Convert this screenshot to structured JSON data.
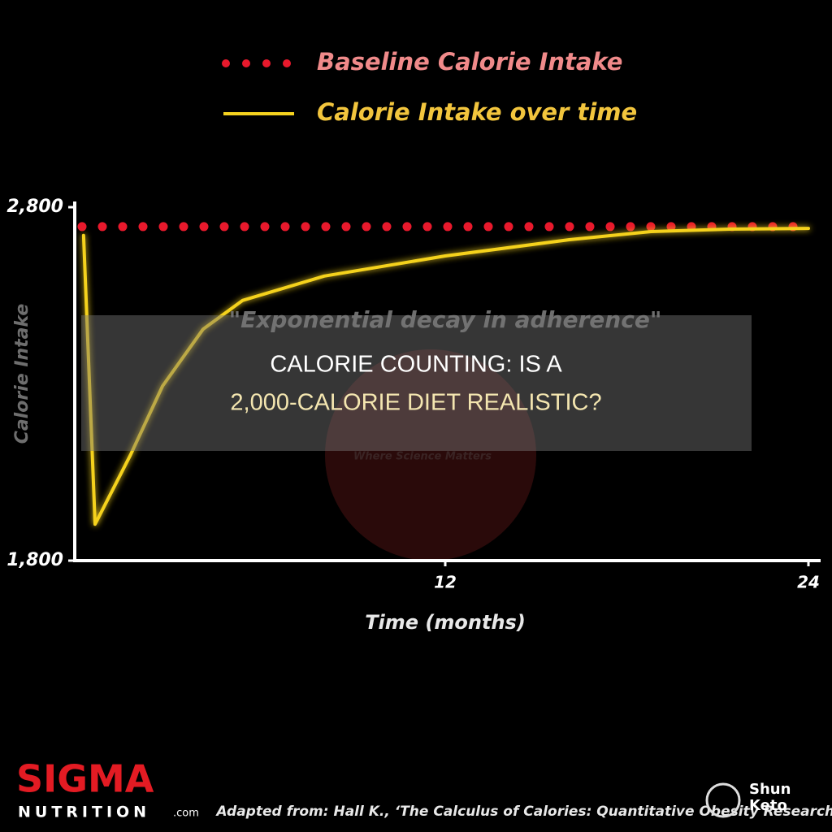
{
  "chart_data": {
    "type": "line",
    "title": null,
    "annotation": "\"Exponential decay in adherence\"",
    "x_label": "Time (months)",
    "y_label": "Calorie Intake",
    "xlim": [
      0,
      24
    ],
    "xticks": [
      12,
      24
    ],
    "ylim": [
      1800,
      2800
    ],
    "yticks": [
      {
        "value": 1800,
        "label": "1,800"
      },
      {
        "value": 2800,
        "label": "2,800"
      }
    ],
    "series": [
      {
        "name": "Baseline Calorie Intake",
        "color": "#e8192c",
        "style": "dotted",
        "x": [
          0,
          24
        ],
        "values": [
          2745,
          2745
        ]
      },
      {
        "name": "Calorie Intake over time",
        "color": "#f5d21f",
        "style": "solid",
        "x": [
          0.05,
          0.43,
          1.6,
          2.66,
          4,
          5.3,
          8,
          12,
          16.1,
          18.8,
          21.4,
          24
        ],
        "values": [
          2720,
          1903,
          2099,
          2294,
          2455,
          2536,
          2605,
          2662,
          2708,
          2731,
          2738,
          2740
        ]
      }
    ]
  },
  "overlay_title": [
    "CALORIE COUNTING: IS A",
    "2,000-CALORIE DIET REALISTIC?"
  ],
  "watermark": "Where Science Matters",
  "logos": {
    "brand": "SIGMA",
    "brand_sub": "NUTRITION",
    "brand_domain": ".com",
    "site": [
      "Shun",
      "Keto"
    ]
  },
  "source": "Adapted from: Hall K., ‘The Calculus of Calories: Quantitative Obesity Research’"
}
